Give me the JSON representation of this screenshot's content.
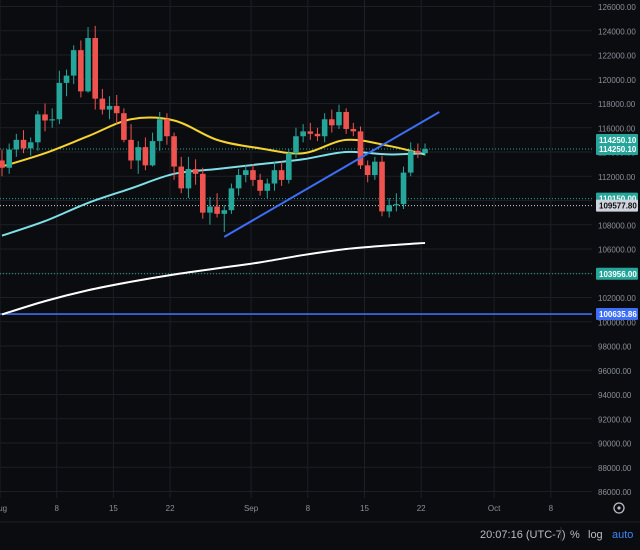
{
  "chart_data": {
    "type": "candlestick",
    "ylim": [
      85000,
      127000
    ],
    "y_ticks": [
      86000,
      88000,
      90000,
      92000,
      94000,
      96000,
      98000,
      100000,
      102000,
      104000,
      106000,
      108000,
      110000,
      112000,
      114000,
      116000,
      118000,
      120000,
      122000,
      124000,
      126000
    ],
    "y_tick_labels": [
      "86000.00",
      "88000.00",
      "90000.00",
      "92000.00",
      "94000.00",
      "96000.00",
      "98000.00",
      "100000.00",
      "102000.00",
      "104000.00",
      "106000.00",
      "108000.00",
      "110000.00",
      "112000.00",
      "114000.00",
      "116000.00",
      "118000.00",
      "120000.00",
      "122000.00",
      "124000.00",
      "126000.00"
    ],
    "x_tick_labels": [
      "Aug",
      "8",
      "15",
      "22",
      "Sep",
      "8",
      "15",
      "22",
      "Oct",
      "8"
    ],
    "x_tick_day_index": [
      1,
      8,
      15,
      22,
      32,
      39,
      46,
      53,
      62,
      69
    ],
    "x_range_days": [
      1,
      78
    ],
    "grid": true,
    "candles": [
      {
        "o": 113300,
        "h": 114200,
        "l": 112000,
        "c": 112700
      },
      {
        "o": 112700,
        "h": 114700,
        "l": 112200,
        "c": 114200
      },
      {
        "o": 114200,
        "h": 115500,
        "l": 113600,
        "c": 115000
      },
      {
        "o": 115000,
        "h": 115800,
        "l": 113900,
        "c": 114300
      },
      {
        "o": 114300,
        "h": 115200,
        "l": 113700,
        "c": 114800
      },
      {
        "o": 114800,
        "h": 117400,
        "l": 114100,
        "c": 117100
      },
      {
        "o": 117100,
        "h": 118000,
        "l": 115700,
        "c": 116600
      },
      {
        "o": 116600,
        "h": 117600,
        "l": 116000,
        "c": 116700
      },
      {
        "o": 116700,
        "h": 120700,
        "l": 116300,
        "c": 119700
      },
      {
        "o": 119700,
        "h": 120800,
        "l": 118600,
        "c": 120300
      },
      {
        "o": 120300,
        "h": 122800,
        "l": 119600,
        "c": 122400
      },
      {
        "o": 122400,
        "h": 123200,
        "l": 118500,
        "c": 119000
      },
      {
        "o": 119000,
        "h": 124300,
        "l": 118900,
        "c": 123400
      },
      {
        "o": 123400,
        "h": 124400,
        "l": 117500,
        "c": 118400
      },
      {
        "o": 118400,
        "h": 119200,
        "l": 117100,
        "c": 117500
      },
      {
        "o": 117500,
        "h": 118600,
        "l": 116700,
        "c": 117800
      },
      {
        "o": 117800,
        "h": 118700,
        "l": 116300,
        "c": 117200
      },
      {
        "o": 117200,
        "h": 117600,
        "l": 114800,
        "c": 115000
      },
      {
        "o": 115000,
        "h": 116300,
        "l": 112600,
        "c": 113300
      },
      {
        "o": 113300,
        "h": 114900,
        "l": 112200,
        "c": 114400
      },
      {
        "o": 114400,
        "h": 115200,
        "l": 112500,
        "c": 112900
      },
      {
        "o": 112900,
        "h": 115600,
        "l": 112800,
        "c": 114900
      },
      {
        "o": 114900,
        "h": 117300,
        "l": 114100,
        "c": 116700
      },
      {
        "o": 116700,
        "h": 117200,
        "l": 114600,
        "c": 115300
      },
      {
        "o": 115300,
        "h": 115600,
        "l": 111700,
        "c": 112800
      },
      {
        "o": 112800,
        "h": 113600,
        "l": 110600,
        "c": 111000
      },
      {
        "o": 111000,
        "h": 113600,
        "l": 110200,
        "c": 112600
      },
      {
        "o": 112600,
        "h": 113400,
        "l": 111300,
        "c": 112200
      },
      {
        "o": 112200,
        "h": 112700,
        "l": 108500,
        "c": 109000
      },
      {
        "o": 109000,
        "h": 110300,
        "l": 108000,
        "c": 109500
      },
      {
        "o": 109500,
        "h": 110600,
        "l": 108600,
        "c": 108900
      },
      {
        "o": 108900,
        "h": 109600,
        "l": 107400,
        "c": 109200
      },
      {
        "o": 109200,
        "h": 111400,
        "l": 108900,
        "c": 111000
      },
      {
        "o": 111000,
        "h": 112600,
        "l": 110400,
        "c": 112100
      },
      {
        "o": 112100,
        "h": 112900,
        "l": 111500,
        "c": 112500
      },
      {
        "o": 112500,
        "h": 113000,
        "l": 111200,
        "c": 111700
      },
      {
        "o": 111700,
        "h": 112200,
        "l": 110400,
        "c": 110800
      },
      {
        "o": 110800,
        "h": 111800,
        "l": 110200,
        "c": 111400
      },
      {
        "o": 111400,
        "h": 113200,
        "l": 110800,
        "c": 112500
      },
      {
        "o": 112500,
        "h": 113200,
        "l": 111200,
        "c": 111700
      },
      {
        "o": 111700,
        "h": 114200,
        "l": 111400,
        "c": 113900
      },
      {
        "o": 113900,
        "h": 116000,
        "l": 113500,
        "c": 115300
      },
      {
        "o": 115300,
        "h": 116300,
        "l": 114800,
        "c": 115700
      },
      {
        "o": 115700,
        "h": 116400,
        "l": 115000,
        "c": 115500
      },
      {
        "o": 115500,
        "h": 116000,
        "l": 114900,
        "c": 115300
      },
      {
        "o": 115300,
        "h": 117200,
        "l": 114800,
        "c": 116700
      },
      {
        "o": 116700,
        "h": 117500,
        "l": 115600,
        "c": 116200
      },
      {
        "o": 116200,
        "h": 117900,
        "l": 115900,
        "c": 117300
      },
      {
        "o": 117300,
        "h": 117600,
        "l": 115500,
        "c": 115900
      },
      {
        "o": 115900,
        "h": 116400,
        "l": 115300,
        "c": 115700
      },
      {
        "o": 115700,
        "h": 116100,
        "l": 112600,
        "c": 112900
      },
      {
        "o": 112900,
        "h": 113300,
        "l": 111500,
        "c": 112100
      },
      {
        "o": 112100,
        "h": 113600,
        "l": 111700,
        "c": 113200
      },
      {
        "o": 113200,
        "h": 113700,
        "l": 108700,
        "c": 109100
      },
      {
        "o": 109100,
        "h": 110200,
        "l": 108600,
        "c": 109600
      },
      {
        "o": 109600,
        "h": 110600,
        "l": 109100,
        "c": 109700
      },
      {
        "o": 109700,
        "h": 112800,
        "l": 109300,
        "c": 112300
      },
      {
        "o": 112300,
        "h": 114800,
        "l": 112000,
        "c": 114100
      },
      {
        "o": 114100,
        "h": 114700,
        "l": 113500,
        "c": 113900
      },
      {
        "o": 113900,
        "h": 114700,
        "l": 113700,
        "c": 114250
      }
    ],
    "moving_averages": [
      {
        "color": "#f5d431",
        "values": [
          [
            0,
            112800
          ],
          [
            6,
            113900
          ],
          [
            12,
            115300
          ],
          [
            18,
            116700
          ],
          [
            24,
            116600
          ],
          [
            30,
            115000
          ],
          [
            36,
            114300
          ],
          [
            42,
            113900
          ],
          [
            48,
            115000
          ],
          [
            54,
            114500
          ],
          [
            59,
            113800
          ]
        ]
      },
      {
        "color": "#7ee0e8",
        "values": [
          [
            0,
            107100
          ],
          [
            6,
            108300
          ],
          [
            12,
            109800
          ],
          [
            18,
            111000
          ],
          [
            24,
            112200
          ],
          [
            30,
            112600
          ],
          [
            36,
            113000
          ],
          [
            42,
            113400
          ],
          [
            48,
            114000
          ],
          [
            54,
            113800
          ],
          [
            59,
            113900
          ]
        ]
      },
      {
        "color": "#ffffff",
        "values": [
          [
            0,
            100600
          ],
          [
            6,
            101700
          ],
          [
            12,
            102600
          ],
          [
            18,
            103300
          ],
          [
            24,
            103900
          ],
          [
            30,
            104400
          ],
          [
            36,
            104900
          ],
          [
            42,
            105500
          ],
          [
            48,
            106000
          ],
          [
            54,
            106300
          ],
          [
            59,
            106500
          ]
        ]
      }
    ],
    "trend_line": {
      "color": "#3d6ef5",
      "from": [
        31,
        107000
      ],
      "to": [
        61,
        117300
      ]
    },
    "horizontal_levels": [
      {
        "value": 110150.0,
        "label": "110150.00",
        "color": "#26a69a",
        "style": "dotted"
      },
      {
        "value": 109577.8,
        "label": "109577.80",
        "color": "#cfd3db",
        "style": "dotted"
      },
      {
        "value": 103956.0,
        "label": "103956.00",
        "color": "#26a69a",
        "style": "dotted"
      },
      {
        "value": 100635.86,
        "label": "100635.86",
        "color": "#3d6ef5",
        "style": "solid"
      },
      {
        "value": 114250.1,
        "label": "114250.10",
        "color": "#26a69a",
        "style": "dotted"
      }
    ],
    "price_tags": [
      {
        "label": "114250.10",
        "value": 114250.1,
        "color": "#26a69a"
      }
    ]
  },
  "status_bar": {
    "time": "20:07:16 (UTC-7)",
    "percent_label": "%",
    "log_label": "log",
    "auto_label": "auto",
    "settings_icon": "gear-icon"
  },
  "colors": {
    "background": "#0b0c0f",
    "up": "#26a69a",
    "down": "#ef5350",
    "grid": "#1c1f26",
    "axis_text": "#8a8f99"
  }
}
